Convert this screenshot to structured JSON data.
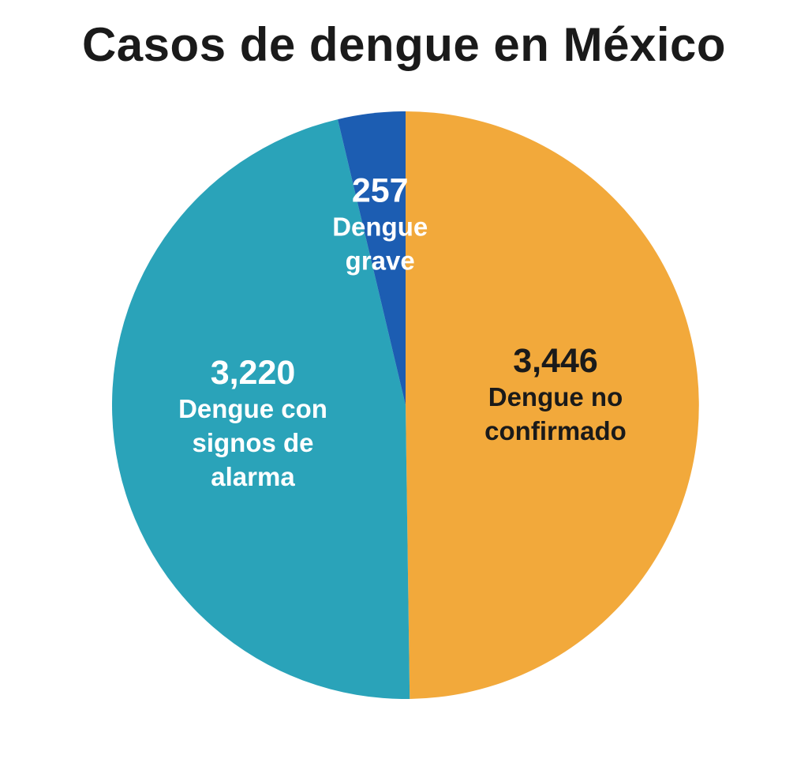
{
  "chart_data": {
    "type": "pie",
    "title": "Casos de dengue en México",
    "slices": [
      {
        "value": 3446,
        "value_label": "3,446",
        "label_lines": [
          "Dengue no",
          "confirmado"
        ],
        "color": "#f2a93b",
        "text_color": "#1a1a1a"
      },
      {
        "value": 3220,
        "value_label": "3,220",
        "label_lines": [
          "Dengue con",
          "signos de",
          "alarma"
        ],
        "color": "#2aa3b9",
        "text_color": "#ffffff"
      },
      {
        "value": 257,
        "value_label": "257",
        "label_lines": [
          "Dengue",
          "grave"
        ],
        "color": "#1c5db2",
        "text_color": "#ffffff"
      }
    ]
  }
}
